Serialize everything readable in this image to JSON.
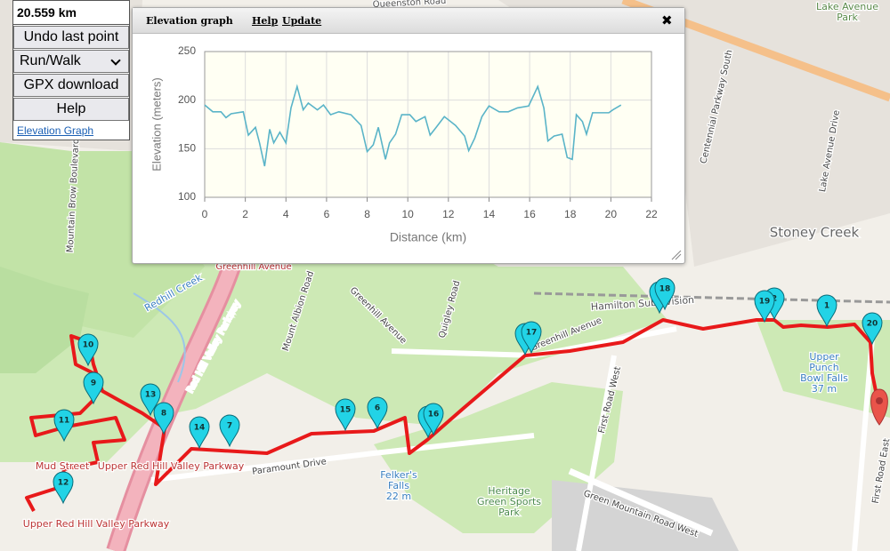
{
  "panel": {
    "distance": "20.559 km",
    "undo": "Undo last point",
    "mode": "Run/Walk",
    "gpx": "GPX download",
    "help": "Help",
    "elevation_link": "Elevation Graph"
  },
  "elevation_window": {
    "title": "Elevation graph",
    "help": "Help",
    "update": "Update",
    "close": "✖"
  },
  "chart_data": {
    "type": "line",
    "ylabel": "Elevation (meters)",
    "xlabel": "Distance (km)",
    "color": "#5ab4c8",
    "grid": true,
    "xlim": [
      0,
      22
    ],
    "xticks": [
      0,
      2,
      4,
      6,
      8,
      10,
      12,
      14,
      16,
      18,
      20,
      22
    ],
    "ylim": [
      100,
      250
    ],
    "yticks": [
      100,
      150,
      200,
      250
    ],
    "x": [
      0,
      0.4,
      0.8,
      1.05,
      1.3,
      1.9,
      2.15,
      2.5,
      2.7,
      2.95,
      3.2,
      3.4,
      3.7,
      4,
      4.25,
      4.55,
      4.85,
      5.1,
      5.55,
      5.85,
      6.2,
      6.6,
      7.2,
      7.7,
      8,
      8.3,
      8.55,
      8.9,
      9.1,
      9.4,
      9.7,
      10.1,
      10.4,
      10.85,
      11.1,
      11.4,
      11.8,
      12.35,
      12.8,
      13,
      13.3,
      13.65,
      14,
      14.5,
      14.95,
      15.4,
      15.95,
      16.4,
      16.7,
      16.9,
      17.2,
      17.6,
      17.85,
      18.1,
      18.3,
      18.6,
      18.8,
      19.1,
      19.5,
      19.9,
      20.1,
      20.5
    ],
    "values": [
      195,
      188,
      188,
      182,
      186,
      188,
      164,
      172,
      156,
      132,
      170,
      156,
      167,
      156,
      192,
      214,
      190,
      197,
      190,
      195,
      185,
      188,
      185,
      174,
      147,
      154,
      172,
      139,
      156,
      165,
      185,
      185,
      178,
      183,
      164,
      172,
      183,
      174,
      163,
      148,
      161,
      183,
      194,
      188,
      188,
      192,
      194,
      214,
      192,
      158,
      163,
      165,
      141,
      139,
      185,
      178,
      165,
      187,
      187,
      187,
      190,
      195
    ]
  },
  "map": {
    "labels": [
      {
        "lines": [
          "Queenston Road"
        ]
      },
      {
        "lines": [
          "Lake Avenue",
          "Park"
        ]
      },
      {
        "lines": [
          "Centennial Parkway South"
        ]
      },
      {
        "lines": [
          "Lake Avenue Drive"
        ]
      },
      {
        "lines": [
          "Stoney Creek"
        ]
      },
      {
        "lines": [
          "Greenhill Avenue"
        ]
      },
      {
        "lines": [
          "Redhill Creek"
        ]
      },
      {
        "lines": [
          "Red Hill Valley Parkway"
        ]
      },
      {
        "lines": [
          "Mount Albion Road"
        ]
      },
      {
        "lines": [
          "Greenhill Avenue"
        ]
      },
      {
        "lines": [
          "Quigley Road"
        ]
      },
      {
        "lines": [
          "Hamilton Subdivision"
        ]
      },
      {
        "lines": [
          "Greenhill Avenue"
        ]
      },
      {
        "lines": [
          "Mountain Brow Boulevard"
        ]
      },
      {
        "lines": [
          "Upper",
          "Punch",
          "Bowl Falls",
          "37 m"
        ]
      },
      {
        "lines": [
          "Felker's",
          "Falls",
          "22 m"
        ]
      },
      {
        "lines": [
          "First Road West"
        ]
      },
      {
        "lines": [
          "Heritage",
          "Green Sports",
          "Park"
        ]
      },
      {
        "lines": [
          "Green Mountain Road West"
        ]
      },
      {
        "lines": [
          "Paramount Drive"
        ]
      },
      {
        "lines": [
          "Mud Street"
        ]
      },
      {
        "lines": [
          "Upper Red Hill Valley Parkway"
        ]
      },
      {
        "lines": [
          "Upper Red Hill Valley Parkway"
        ]
      },
      {
        "lines": [
          "First Road East"
        ]
      }
    ],
    "markers": [
      "1",
      "2",
      "3",
      "4",
      "5",
      "6",
      "7",
      "8",
      "9",
      "10",
      "11",
      "12",
      "13",
      "14",
      "15",
      "16",
      "17",
      "18",
      "19",
      "20"
    ]
  }
}
